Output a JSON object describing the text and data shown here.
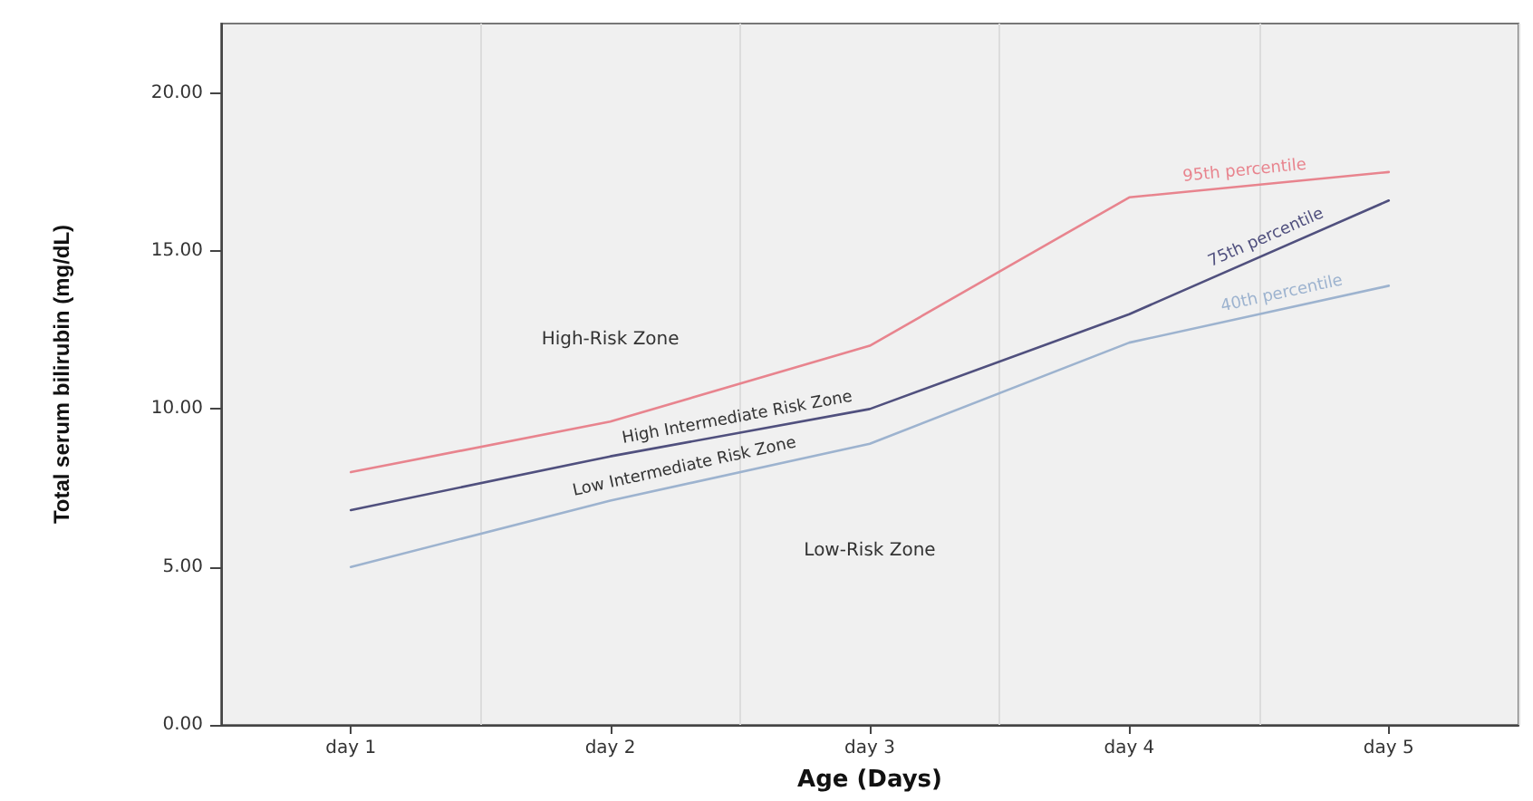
{
  "chart_data": {
    "type": "line",
    "xlabel": "Age (Days)",
    "ylabel": "Total serum bilirubin (mg/dL)",
    "categories": [
      "day 1",
      "day 2",
      "day 3",
      "day 4",
      "day 5"
    ],
    "series": [
      {
        "name": "95th percentile",
        "color": "#e8848e",
        "values": [
          8.0,
          9.6,
          12.0,
          16.7,
          17.5
        ]
      },
      {
        "name": "75th percentile",
        "color": "#50507e",
        "values": [
          6.8,
          8.5,
          10.0,
          13.0,
          16.6
        ]
      },
      {
        "name": "40th percentile",
        "color": "#9db3cf",
        "values": [
          5.0,
          7.1,
          8.9,
          12.1,
          13.9
        ]
      }
    ],
    "annotations": [
      "High-Risk Zone",
      "High Intermediate Risk Zone",
      "Low Intermediate Risk Zone",
      "Low-Risk Zone"
    ],
    "ylim": [
      0,
      22.2
    ],
    "yticks": [
      {
        "value": 0,
        "label": "0.00"
      },
      {
        "value": 5,
        "label": "5.00"
      },
      {
        "value": 10,
        "label": "10.00"
      },
      {
        "value": 15,
        "label": "15.00"
      },
      {
        "value": 20,
        "label": "20.00"
      }
    ],
    "grid": "x",
    "legend": false,
    "marker": "none",
    "line_style": "solid"
  }
}
